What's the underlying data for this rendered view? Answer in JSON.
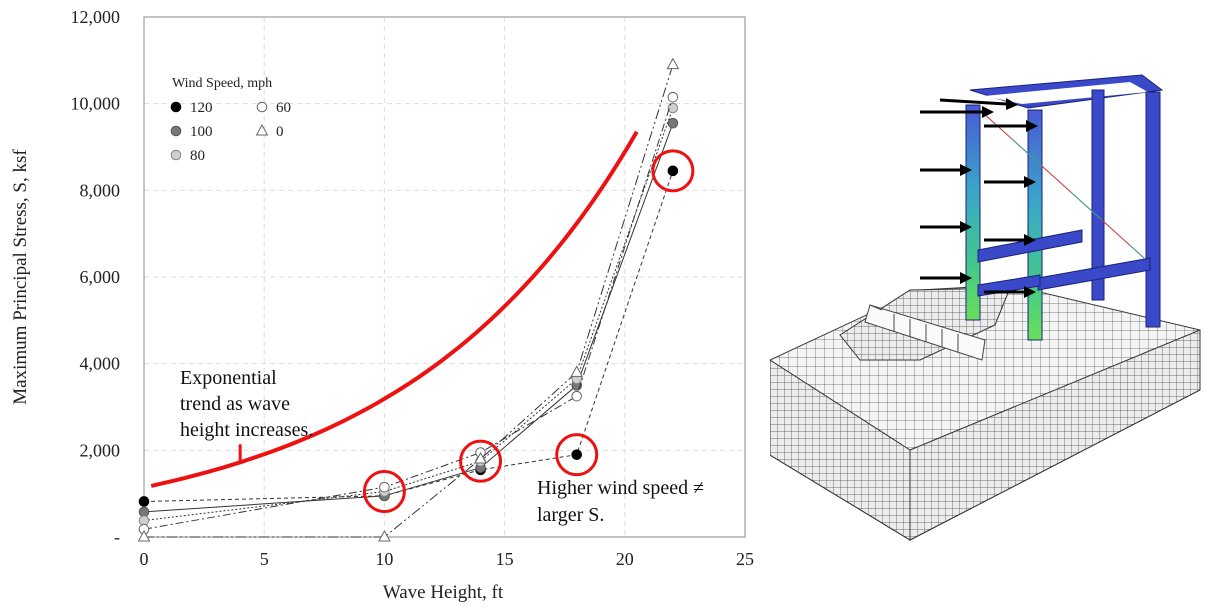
{
  "chart_data": {
    "type": "line",
    "xlabel": "Wave Height, ft",
    "ylabel": "Maximum Principal Stress, S, ksf",
    "xlim": [
      0,
      25
    ],
    "ylim": [
      0,
      12000
    ],
    "x_ticks": [
      "0",
      "5",
      "10",
      "15",
      "20",
      "25"
    ],
    "y_ticks": [
      "-",
      "2,000",
      "4,000",
      "6,000",
      "8,000",
      "10,000",
      "12,000"
    ],
    "grid": true,
    "legend": {
      "title": "Wind Speed, mph",
      "placement": "top-left",
      "entries": [
        "120",
        "100",
        "80",
        "60",
        "0"
      ]
    },
    "x": [
      0,
      10,
      14,
      18,
      22
    ],
    "series": [
      {
        "name": "120",
        "marker": "filled-black-circle",
        "dash": "4,3",
        "values": [
          820,
          950,
          1550,
          1900,
          8450
        ]
      },
      {
        "name": "100",
        "marker": "dark-gray-circle",
        "dash": "",
        "values": [
          580,
          950,
          1600,
          3500,
          9550
        ]
      },
      {
        "name": "80",
        "marker": "light-gray-circle",
        "dash": "2,2",
        "values": [
          380,
          1050,
          1750,
          3650,
          9900
        ]
      },
      {
        "name": "60",
        "marker": "open-circle",
        "dash": "8,3,2,3",
        "values": [
          180,
          1150,
          1950,
          3250,
          10150
        ]
      },
      {
        "name": "0",
        "marker": "open-triangle",
        "dash": "10,3,2,3,2,3",
        "values": [
          0,
          0,
          1800,
          3800,
          10900
        ]
      }
    ],
    "trend_curve": {
      "x": [
        0.3,
        20.5
      ],
      "y0": 1180,
      "y1": 9350
    },
    "highlight_circles": [
      {
        "x": 10,
        "y": 1050
      },
      {
        "x": 14,
        "y": 1750
      },
      {
        "x": 18,
        "y": 1900
      },
      {
        "x": 22,
        "y": 8450
      }
    ],
    "annotations": [
      {
        "lines": [
          "Exponential",
          "trend as wave",
          "height increases."
        ]
      },
      {
        "lines": [
          "Higher wind speed ≠",
          "larger S."
        ]
      }
    ],
    "colors": {
      "trend": "#ee1111",
      "highlight": "#ee1111",
      "grid": "#dddddd",
      "axis": "#888888"
    }
  }
}
